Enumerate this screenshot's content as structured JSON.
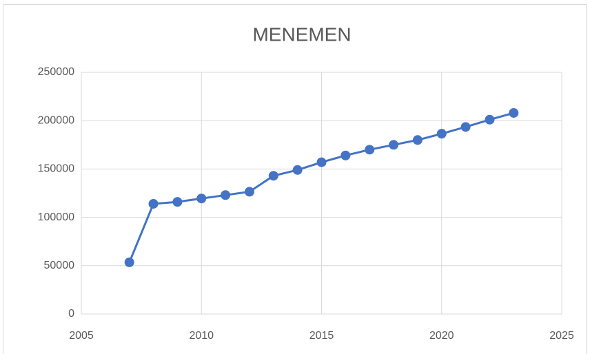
{
  "chart_data": {
    "type": "line",
    "title": "MENEMEN",
    "x": [
      2007,
      2008,
      2009,
      2010,
      2011,
      2012,
      2013,
      2014,
      2015,
      2016,
      2017,
      2018,
      2019,
      2020,
      2021,
      2022,
      2023
    ],
    "series": [
      {
        "color": "#4472c4",
        "values": [
          53500,
          114000,
          116000,
          119500,
          123000,
          126500,
          143000,
          149000,
          157000,
          164000,
          170000,
          175000,
          180000,
          186500,
          193500,
          201000,
          208000
        ]
      }
    ],
    "xlim": [
      2005,
      2025
    ],
    "xticks": [
      2005,
      2010,
      2015,
      2020,
      2025
    ],
    "ylim": [
      0,
      250000
    ],
    "yticks": [
      0,
      50000,
      100000,
      150000,
      200000,
      250000
    ],
    "grid": true
  }
}
